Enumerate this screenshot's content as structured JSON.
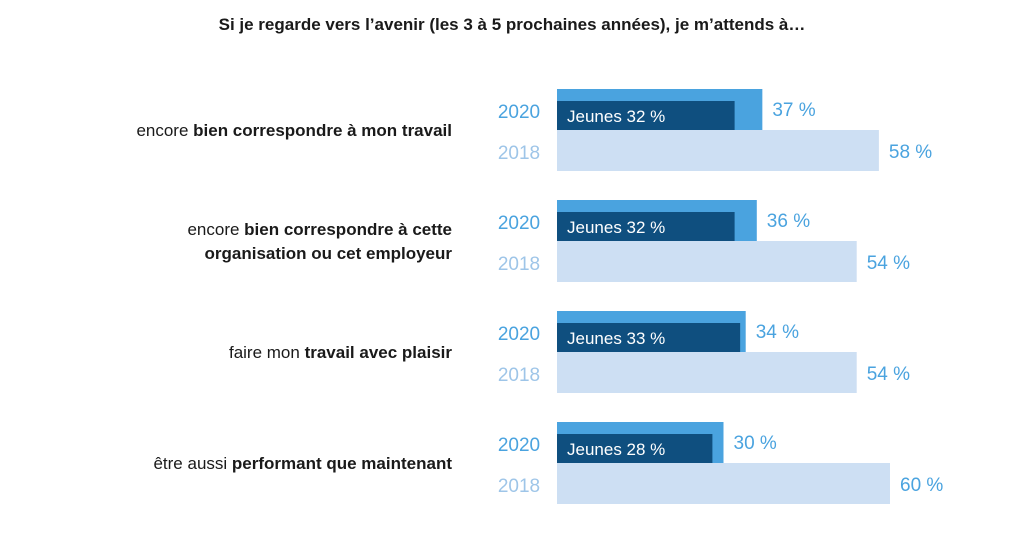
{
  "chart_data": {
    "type": "bar",
    "title": "Si je regarde vers l’avenir (les 3 à 5 prochaines années), je m’attends à…",
    "orientation": "horizontal",
    "categories": [
      {
        "lines": [
          [
            {
              "text": "encore ",
              "bold": false
            },
            {
              "text": "bien correspondre à mon travail",
              "bold": true
            }
          ]
        ]
      },
      {
        "lines": [
          [
            {
              "text": "encore ",
              "bold": false
            },
            {
              "text": "bien correspondre à cette",
              "bold": true
            }
          ],
          [
            {
              "text": "organisation ou cet employeur",
              "bold": true
            }
          ]
        ]
      },
      {
        "lines": [
          [
            {
              "text": "faire mon ",
              "bold": false
            },
            {
              "text": "travail avec plaisir",
              "bold": true
            }
          ]
        ]
      },
      {
        "lines": [
          [
            {
              "text": "être aussi ",
              "bold": false
            },
            {
              "text": "performant que maintenant",
              "bold": true
            }
          ]
        ]
      }
    ],
    "series": [
      {
        "name": "2020",
        "values": [
          37,
          36,
          34,
          30
        ],
        "labels": [
          "37 %",
          "36 %",
          "34 %",
          "30 %"
        ],
        "color": "#4aa3df"
      },
      {
        "name": "2018",
        "values": [
          58,
          54,
          54,
          60
        ],
        "labels": [
          "58 %",
          "54 %",
          "54 %",
          "60 %"
        ],
        "color": "#cddff3"
      }
    ],
    "overlay": {
      "prefix": "Jeunes",
      "values": [
        32,
        32,
        33,
        28
      ],
      "labels": [
        "Jeunes 32 %",
        "Jeunes 32 %",
        "Jeunes 33 %",
        "Jeunes 28 %"
      ],
      "color": "#0f4f7f"
    },
    "xlim": [
      0,
      60
    ],
    "grid": false,
    "legend": "none"
  }
}
